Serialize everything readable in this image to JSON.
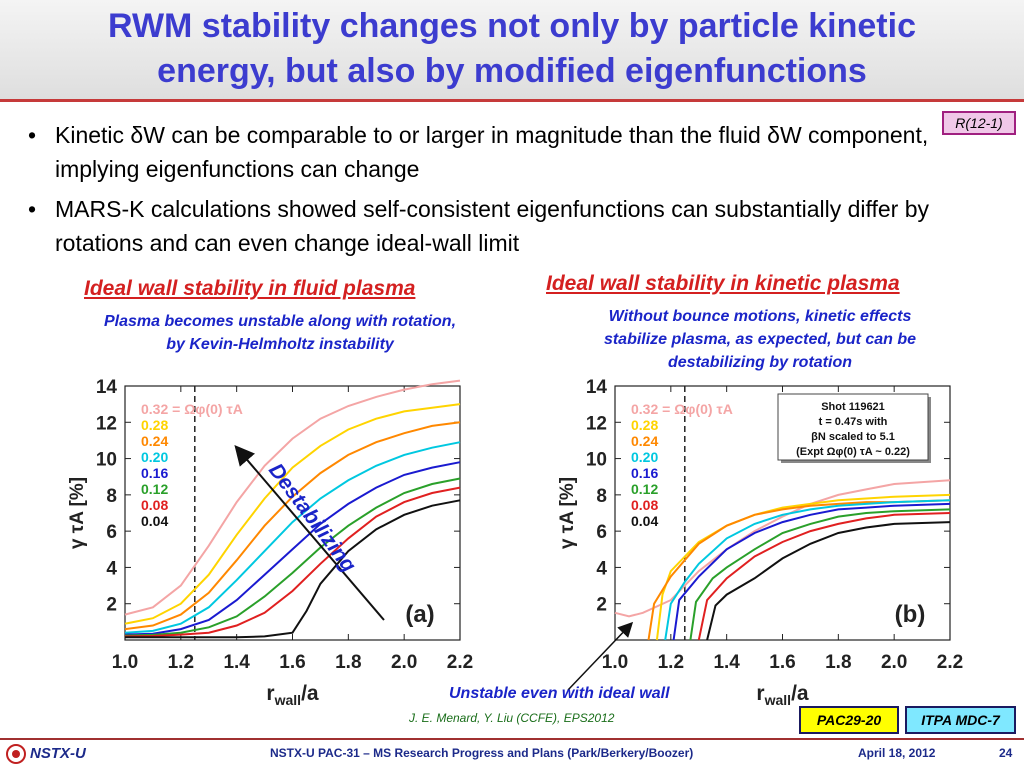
{
  "title": {
    "line1": "RWM stability changes not only by particle kinetic",
    "line2": "energy, but also by modified eigenfunctions"
  },
  "ref_box": "R(12-1)",
  "bullets": [
    "Kinetic δW can be comparable to or larger in magnitude than the fluid δW component, implying eigenfunctions can change",
    "MARS-K calculations showed self-consistent eigenfunctions can substantially differ by rotations and can even change ideal-wall limit"
  ],
  "left": {
    "heading": "Ideal wall stability in fluid plasma",
    "sub1": "Plasma becomes unstable along with rotation,",
    "sub2": "by Kevin-Helmholtz instability"
  },
  "right": {
    "heading": "Ideal wall stability in kinetic plasma",
    "sub1": "Without bounce motions, kinetic effects",
    "sub2": "stabilize plasma, as expected, but can be",
    "sub3": "destabilizing by rotation"
  },
  "annot_destab": "Destabilizing",
  "annot_unstable": "Unstable even with ideal wall",
  "citation": "J. E. Menard, Y. Liu (CCFE), EPS2012",
  "tags": [
    "PAC29-20",
    "ITPA MDC-7"
  ],
  "shot_box": [
    "Shot 119621",
    "t = 0.47s with",
    "βN scaled to 5.1",
    "(Expt Ωφ(0) τA ~ 0.22)"
  ],
  "footer": {
    "logo": "NSTX-U",
    "center": "NSTX-U PAC-31 – MS Research Progress and Plans (Park/Berkery/Boozer)",
    "date": "April 18, 2012",
    "page": "24"
  },
  "chart_data": [
    {
      "type": "line",
      "panel": "(a)",
      "xlabel": "r_wall/a",
      "ylabel": "γ τA [%]",
      "xlim": [
        1.0,
        2.2
      ],
      "ylim": [
        0,
        14
      ],
      "xticks": [
        1.0,
        1.2,
        1.4,
        1.6,
        1.8,
        2.0,
        2.2
      ],
      "yticks": [
        2,
        4,
        6,
        8,
        10,
        12,
        14
      ],
      "vline_x": 1.25,
      "legend_header": "0.32 = Ωφ(0) τA",
      "series": [
        {
          "name": "0.32",
          "color": "#f4a5a5",
          "x": [
            1.0,
            1.1,
            1.2,
            1.3,
            1.4,
            1.5,
            1.6,
            1.7,
            1.8,
            1.9,
            2.0,
            2.1,
            2.2
          ],
          "y": [
            1.4,
            1.8,
            3.0,
            5.2,
            7.6,
            9.6,
            11.1,
            12.2,
            12.9,
            13.4,
            13.8,
            14.1,
            14.3
          ]
        },
        {
          "name": "0.28",
          "color": "#ffd400",
          "x": [
            1.0,
            1.1,
            1.2,
            1.3,
            1.4,
            1.5,
            1.6,
            1.7,
            1.8,
            1.9,
            2.0,
            2.1,
            2.2
          ],
          "y": [
            0.9,
            1.2,
            2.0,
            3.6,
            5.8,
            7.8,
            9.5,
            10.7,
            11.6,
            12.2,
            12.6,
            12.8,
            13.0
          ]
        },
        {
          "name": "0.24",
          "color": "#ff8800",
          "x": [
            1.0,
            1.1,
            1.2,
            1.3,
            1.4,
            1.5,
            1.6,
            1.7,
            1.8,
            1.9,
            2.0,
            2.1,
            2.2
          ],
          "y": [
            0.6,
            0.8,
            1.4,
            2.6,
            4.4,
            6.3,
            7.9,
            9.2,
            10.2,
            10.9,
            11.4,
            11.8,
            12.0
          ]
        },
        {
          "name": "0.20",
          "color": "#00c8e0",
          "x": [
            1.0,
            1.1,
            1.2,
            1.3,
            1.4,
            1.5,
            1.6,
            1.7,
            1.8,
            1.9,
            2.0,
            2.1,
            2.2
          ],
          "y": [
            0.4,
            0.5,
            0.9,
            1.8,
            3.3,
            4.9,
            6.5,
            7.8,
            8.8,
            9.6,
            10.2,
            10.6,
            10.9
          ]
        },
        {
          "name": "0.16",
          "color": "#1a1ad0",
          "x": [
            1.0,
            1.1,
            1.2,
            1.3,
            1.4,
            1.5,
            1.6,
            1.7,
            1.8,
            1.9,
            2.0,
            2.1,
            2.2
          ],
          "y": [
            0.3,
            0.35,
            0.6,
            1.1,
            2.2,
            3.6,
            5.0,
            6.4,
            7.5,
            8.4,
            9.1,
            9.5,
            9.8
          ]
        },
        {
          "name": "0.12",
          "color": "#2aa02a",
          "x": [
            1.0,
            1.1,
            1.2,
            1.3,
            1.4,
            1.5,
            1.6,
            1.7,
            1.8,
            1.9,
            2.0,
            2.1,
            2.2
          ],
          "y": [
            0.25,
            0.28,
            0.4,
            0.7,
            1.3,
            2.4,
            3.7,
            5.1,
            6.3,
            7.3,
            8.1,
            8.6,
            8.9
          ]
        },
        {
          "name": "0.08",
          "color": "#e02020",
          "x": [
            1.0,
            1.1,
            1.2,
            1.3,
            1.4,
            1.5,
            1.6,
            1.7,
            1.8,
            1.9,
            2.0,
            2.1,
            2.2
          ],
          "y": [
            0.2,
            0.22,
            0.3,
            0.4,
            0.8,
            1.5,
            2.7,
            4.2,
            5.6,
            6.8,
            7.6,
            8.1,
            8.4
          ]
        },
        {
          "name": "0.04",
          "color": "#111111",
          "x": [
            1.0,
            1.2,
            1.4,
            1.5,
            1.6,
            1.65,
            1.7,
            1.8,
            1.9,
            2.0,
            2.1,
            2.2
          ],
          "y": [
            0.15,
            0.15,
            0.15,
            0.2,
            0.4,
            1.6,
            3.1,
            4.9,
            6.1,
            6.9,
            7.4,
            7.7
          ]
        }
      ]
    },
    {
      "type": "line",
      "panel": "(b)",
      "xlabel": "r_wall/a",
      "ylabel": "γ τA [%]",
      "xlim": [
        1.0,
        2.2
      ],
      "ylim": [
        0,
        14
      ],
      "xticks": [
        1.0,
        1.2,
        1.4,
        1.6,
        1.8,
        2.0,
        2.2
      ],
      "yticks": [
        2,
        4,
        6,
        8,
        10,
        12,
        14
      ],
      "vline_x": 1.25,
      "legend_header": "0.32 = Ωφ(0) τA",
      "series": [
        {
          "name": "0.32",
          "color": "#f4a5a5",
          "x": [
            1.0,
            1.05,
            1.1,
            1.2,
            1.3,
            1.4,
            1.5,
            1.6,
            1.7,
            1.8,
            1.9,
            2.0,
            2.2
          ],
          "y": [
            1.5,
            1.3,
            1.5,
            2.2,
            3.8,
            5.0,
            6.0,
            6.8,
            7.5,
            8.0,
            8.3,
            8.6,
            8.8
          ]
        },
        {
          "name": "0.28",
          "color": "#ffd400",
          "x": [
            1.15,
            1.17,
            1.2,
            1.3,
            1.4,
            1.5,
            1.6,
            1.7,
            1.8,
            1.9,
            2.0,
            2.2
          ],
          "y": [
            0,
            2.5,
            3.8,
            5.4,
            6.3,
            6.9,
            7.3,
            7.5,
            7.7,
            7.8,
            7.9,
            8.0
          ]
        },
        {
          "name": "0.24",
          "color": "#ff8800",
          "x": [
            1.12,
            1.14,
            1.2,
            1.3,
            1.4,
            1.5,
            1.6,
            1.7,
            1.8,
            1.9,
            2.0,
            2.2
          ],
          "y": [
            0,
            2.0,
            3.5,
            5.3,
            6.3,
            6.9,
            7.2,
            7.4,
            7.5,
            7.6,
            7.6,
            7.7
          ]
        },
        {
          "name": "0.20",
          "color": "#00c8e0",
          "x": [
            1.18,
            1.2,
            1.25,
            1.3,
            1.4,
            1.5,
            1.6,
            1.7,
            1.8,
            1.9,
            2.0,
            2.2
          ],
          "y": [
            0,
            2.0,
            3.2,
            4.2,
            5.6,
            6.4,
            6.9,
            7.2,
            7.4,
            7.5,
            7.6,
            7.7
          ]
        },
        {
          "name": "0.16",
          "color": "#1a1ad0",
          "x": [
            1.21,
            1.23,
            1.3,
            1.4,
            1.5,
            1.6,
            1.7,
            1.8,
            1.9,
            2.0,
            2.2
          ],
          "y": [
            0,
            2.2,
            3.5,
            5.0,
            5.9,
            6.5,
            6.9,
            7.2,
            7.3,
            7.4,
            7.5
          ]
        },
        {
          "name": "0.12",
          "color": "#2aa02a",
          "x": [
            1.27,
            1.29,
            1.35,
            1.4,
            1.5,
            1.6,
            1.7,
            1.8,
            1.9,
            2.0,
            2.2
          ],
          "y": [
            0,
            2.1,
            3.4,
            4.0,
            5.0,
            5.9,
            6.4,
            6.8,
            7.0,
            7.1,
            7.2
          ]
        },
        {
          "name": "0.08",
          "color": "#e02020",
          "x": [
            1.3,
            1.33,
            1.4,
            1.5,
            1.6,
            1.7,
            1.8,
            1.9,
            2.0,
            2.2
          ],
          "y": [
            0,
            2.2,
            3.4,
            4.6,
            5.4,
            6.0,
            6.4,
            6.7,
            6.9,
            7.0
          ]
        },
        {
          "name": "0.04",
          "color": "#111111",
          "x": [
            1.33,
            1.36,
            1.4,
            1.5,
            1.6,
            1.7,
            1.8,
            1.9,
            2.0,
            2.2
          ],
          "y": [
            0,
            1.9,
            2.5,
            3.4,
            4.5,
            5.3,
            5.9,
            6.2,
            6.4,
            6.5
          ]
        }
      ]
    }
  ]
}
